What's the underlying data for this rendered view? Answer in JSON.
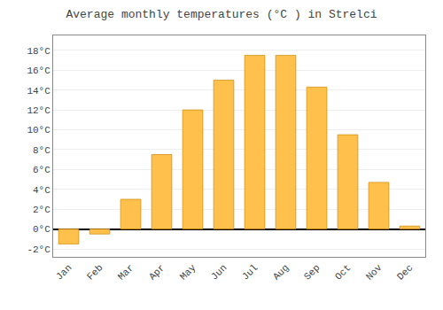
{
  "chart_data": {
    "type": "bar",
    "title": "Average monthly temperatures (°C ) in Strelci",
    "categories": [
      "Jan",
      "Feb",
      "Mar",
      "Apr",
      "May",
      "Jun",
      "Jul",
      "Aug",
      "Sep",
      "Oct",
      "Nov",
      "Dec"
    ],
    "values": [
      -1.5,
      -0.5,
      3.0,
      7.5,
      12.0,
      15.0,
      17.5,
      17.5,
      14.3,
      9.5,
      4.7,
      0.3
    ],
    "color": "#FFC04C",
    "ylim": [
      -2.8,
      19.5
    ],
    "yticks": [
      {
        "value": -2,
        "label": "-2°C"
      },
      {
        "value": 0,
        "label": "0°C"
      },
      {
        "value": 2,
        "label": "2°C"
      },
      {
        "value": 4,
        "label": "4°C"
      },
      {
        "value": 6,
        "label": "6°C"
      },
      {
        "value": 8,
        "label": "8°C"
      },
      {
        "value": 10,
        "label": "10°C"
      },
      {
        "value": 12,
        "label": "12°C"
      },
      {
        "value": 14,
        "label": "14°C"
      },
      {
        "value": 16,
        "label": "16°C"
      },
      {
        "value": 18,
        "label": "18°C"
      }
    ],
    "grid": true
  }
}
